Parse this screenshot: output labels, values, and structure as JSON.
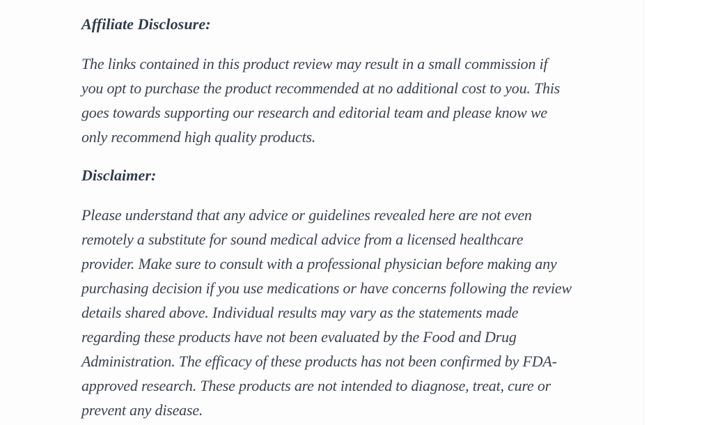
{
  "page": {
    "background": "#ffffff",
    "content_background": "#fdfdfd",
    "edge_color": "#f2f2f2",
    "heading_color": "#2e3b4e",
    "text_color": "#3a434f"
  },
  "article": {
    "sections": [
      {
        "heading": "Affiliate Disclosure:",
        "lines": [
          "The links contained in this product review may result in a small commission if",
          "you opt to purchase the product recommended at no additional cost to you. This",
          "goes towards supporting our research and editorial team and please know we",
          "only recommend high quality products."
        ]
      },
      {
        "heading": "Disclaimer:",
        "lines": [
          "Please understand that any advice or guidelines revealed here are not even",
          "remotely a substitute for sound medical advice from a licensed healthcare",
          "provider. Make sure to consult with a professional physician before making any",
          "purchasing decision if you use medications or have concerns following the review",
          "details shared above. Individual results may vary as the statements made",
          "regarding these products have not been evaluated by the Food and Drug",
          "Administration. The efficacy of these products has not been confirmed by FDA-",
          "approved research. These products are not intended to diagnose, treat, cure or",
          "prevent any disease."
        ]
      }
    ]
  }
}
